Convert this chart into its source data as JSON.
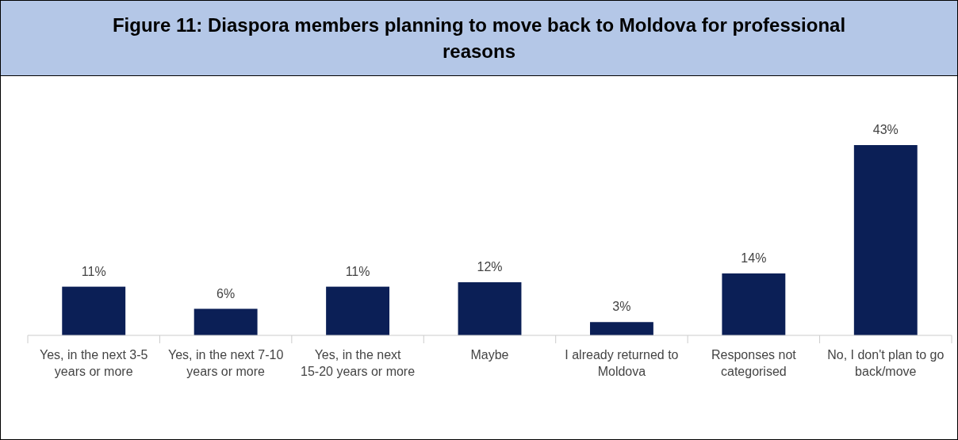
{
  "chart_data": {
    "type": "bar",
    "title": "Figure 11: Diaspora members planning to move back to Moldova for professional reasons",
    "categories": [
      "Yes, in the next 3-5 years or more",
      "Yes, in the next 7-10 years or more",
      "Yes, in the next 15-20 years or more",
      "Maybe",
      "I already returned to Moldova",
      "Responses not categorised",
      "No, I don't plan to go back/move"
    ],
    "values": [
      11,
      6,
      11,
      12,
      3,
      14,
      43
    ],
    "value_labels": [
      "11%",
      "6%",
      "11%",
      "12%",
      "3%",
      "14%",
      "43%"
    ],
    "color": "#0b1f56"
  }
}
